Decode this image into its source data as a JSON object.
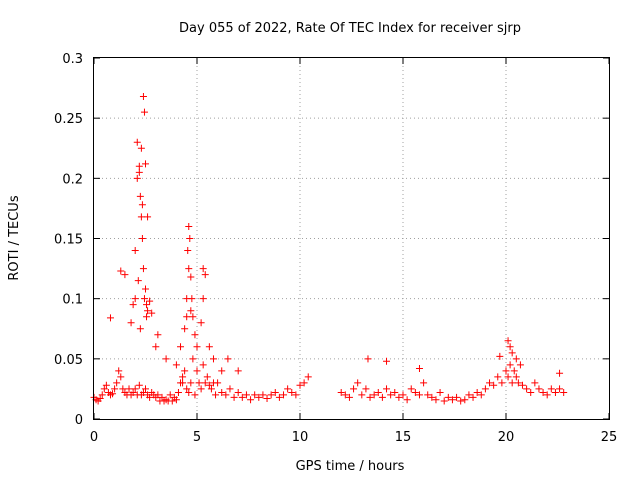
{
  "chart_data": {
    "type": "scatter",
    "title": "Day 055 of 2022, Rate Of TEC Index for receiver sjrp",
    "xlabel": "GPS time / hours",
    "ylabel": "ROTI / TECUs",
    "xlim": [
      0,
      25
    ],
    "ylim": [
      0,
      0.3
    ],
    "xticks": [
      "0",
      "5",
      "10",
      "15",
      "20",
      "25"
    ],
    "yticks": [
      "0",
      "0.05",
      "0.1",
      "0.15",
      "0.2",
      "0.25",
      "0.3"
    ],
    "grid": true,
    "marker": "+",
    "color": "#ff0000",
    "series": [
      {
        "x": [
          0.0,
          0.1,
          0.2,
          0.3,
          0.4,
          0.5,
          0.6,
          0.7,
          0.8,
          0.9,
          1.0,
          1.1,
          1.2,
          1.3,
          1.4,
          1.5,
          1.6,
          1.7,
          1.8,
          1.9,
          2.0,
          2.1,
          2.2,
          2.3,
          2.4,
          2.5,
          2.6,
          2.7,
          2.8,
          2.9,
          3.0,
          3.1,
          3.2,
          3.3,
          3.4,
          3.5,
          3.6,
          3.7,
          3.8,
          3.9,
          4.0,
          4.1,
          4.2,
          4.3,
          4.4,
          4.5,
          4.6,
          4.7,
          4.8,
          4.9,
          5.0,
          5.1,
          5.2,
          5.3,
          5.4,
          5.5,
          5.6,
          5.7,
          5.8,
          5.9,
          6.0,
          6.2,
          6.4,
          6.6,
          6.8,
          7.0,
          7.2,
          7.4,
          7.6,
          7.8,
          8.0,
          8.2,
          8.4,
          8.6,
          8.8,
          9.0,
          9.2,
          9.4,
          9.6,
          9.8,
          10.0,
          10.2,
          10.4,
          12.0,
          12.2,
          12.4,
          12.6,
          12.8,
          13.0,
          13.2,
          13.4,
          13.6,
          13.8,
          14.0,
          14.2,
          14.4,
          14.6,
          14.8,
          15.0,
          15.2,
          15.4,
          15.6,
          15.8,
          16.0,
          16.2,
          16.4,
          16.6,
          16.8,
          17.0,
          17.2,
          17.4,
          17.6,
          17.8,
          18.0,
          18.2,
          18.4,
          18.6,
          18.8,
          19.0,
          19.2,
          19.4,
          19.6,
          19.8,
          20.0,
          20.1,
          20.2,
          20.3,
          20.4,
          20.5,
          20.6,
          20.8,
          21.0,
          21.2,
          21.4,
          21.6,
          21.8,
          22.0,
          22.2,
          22.4,
          22.6,
          22.8,
          0.8,
          1.3,
          1.5,
          1.9,
          2.0,
          2.1,
          2.2,
          2.25,
          2.3,
          2.35,
          2.4,
          2.45,
          2.5,
          2.55,
          2.6,
          2.7,
          2.8,
          3.0,
          4.2,
          4.4,
          4.5,
          4.55,
          4.6,
          4.65,
          4.7,
          4.75,
          4.8,
          4.9,
          5.0,
          5.2,
          5.3,
          5.4,
          5.6,
          5.8,
          6.5,
          7.0,
          2.1,
          2.3,
          2.4,
          2.45,
          2.5,
          2.2,
          2.35,
          2.6,
          4.6,
          4.7,
          4.5,
          5.3,
          1.8,
          2.0,
          2.15,
          2.25,
          2.55,
          3.1,
          3.5,
          4.0,
          4.3,
          6.2,
          13.3,
          14.2,
          15.8,
          19.7,
          20.1,
          20.2,
          20.3,
          20.5,
          20.7,
          22.6
        ],
        "y": [
          0.018,
          0.016,
          0.015,
          0.017,
          0.02,
          0.025,
          0.028,
          0.022,
          0.02,
          0.021,
          0.025,
          0.03,
          0.04,
          0.035,
          0.025,
          0.022,
          0.02,
          0.025,
          0.02,
          0.022,
          0.025,
          0.02,
          0.028,
          0.02,
          0.022,
          0.025,
          0.02,
          0.018,
          0.022,
          0.02,
          0.018,
          0.02,
          0.015,
          0.018,
          0.015,
          0.016,
          0.015,
          0.02,
          0.015,
          0.018,
          0.016,
          0.022,
          0.03,
          0.035,
          0.04,
          0.025,
          0.022,
          0.03,
          0.05,
          0.02,
          0.04,
          0.03,
          0.025,
          0.045,
          0.03,
          0.035,
          0.028,
          0.025,
          0.03,
          0.02,
          0.03,
          0.022,
          0.02,
          0.025,
          0.018,
          0.022,
          0.018,
          0.02,
          0.016,
          0.02,
          0.018,
          0.02,
          0.017,
          0.02,
          0.022,
          0.018,
          0.02,
          0.025,
          0.022,
          0.02,
          0.028,
          0.03,
          0.035,
          0.022,
          0.02,
          0.018,
          0.025,
          0.03,
          0.02,
          0.025,
          0.018,
          0.02,
          0.022,
          0.018,
          0.025,
          0.02,
          0.022,
          0.018,
          0.02,
          0.016,
          0.025,
          0.022,
          0.02,
          0.03,
          0.02,
          0.018,
          0.016,
          0.022,
          0.015,
          0.018,
          0.016,
          0.018,
          0.015,
          0.016,
          0.02,
          0.018,
          0.022,
          0.02,
          0.025,
          0.03,
          0.028,
          0.035,
          0.03,
          0.04,
          0.035,
          0.045,
          0.03,
          0.04,
          0.035,
          0.03,
          0.028,
          0.025,
          0.022,
          0.03,
          0.025,
          0.022,
          0.02,
          0.025,
          0.022,
          0.025,
          0.022,
          0.084,
          0.123,
          0.12,
          0.095,
          0.14,
          0.2,
          0.21,
          0.185,
          0.168,
          0.15,
          0.125,
          0.1,
          0.108,
          0.095,
          0.09,
          0.098,
          0.088,
          0.06,
          0.06,
          0.075,
          0.085,
          0.14,
          0.16,
          0.15,
          0.09,
          0.1,
          0.085,
          0.07,
          0.06,
          0.08,
          0.1,
          0.12,
          0.06,
          0.05,
          0.05,
          0.04,
          0.23,
          0.225,
          0.268,
          0.255,
          0.212,
          0.205,
          0.178,
          0.168,
          0.125,
          0.118,
          0.1,
          0.125,
          0.08,
          0.1,
          0.115,
          0.075,
          0.085,
          0.07,
          0.05,
          0.045,
          0.03,
          0.04,
          0.05,
          0.048,
          0.042,
          0.052,
          0.065,
          0.06,
          0.055,
          0.05,
          0.045,
          0.038
        ]
      }
    ]
  }
}
